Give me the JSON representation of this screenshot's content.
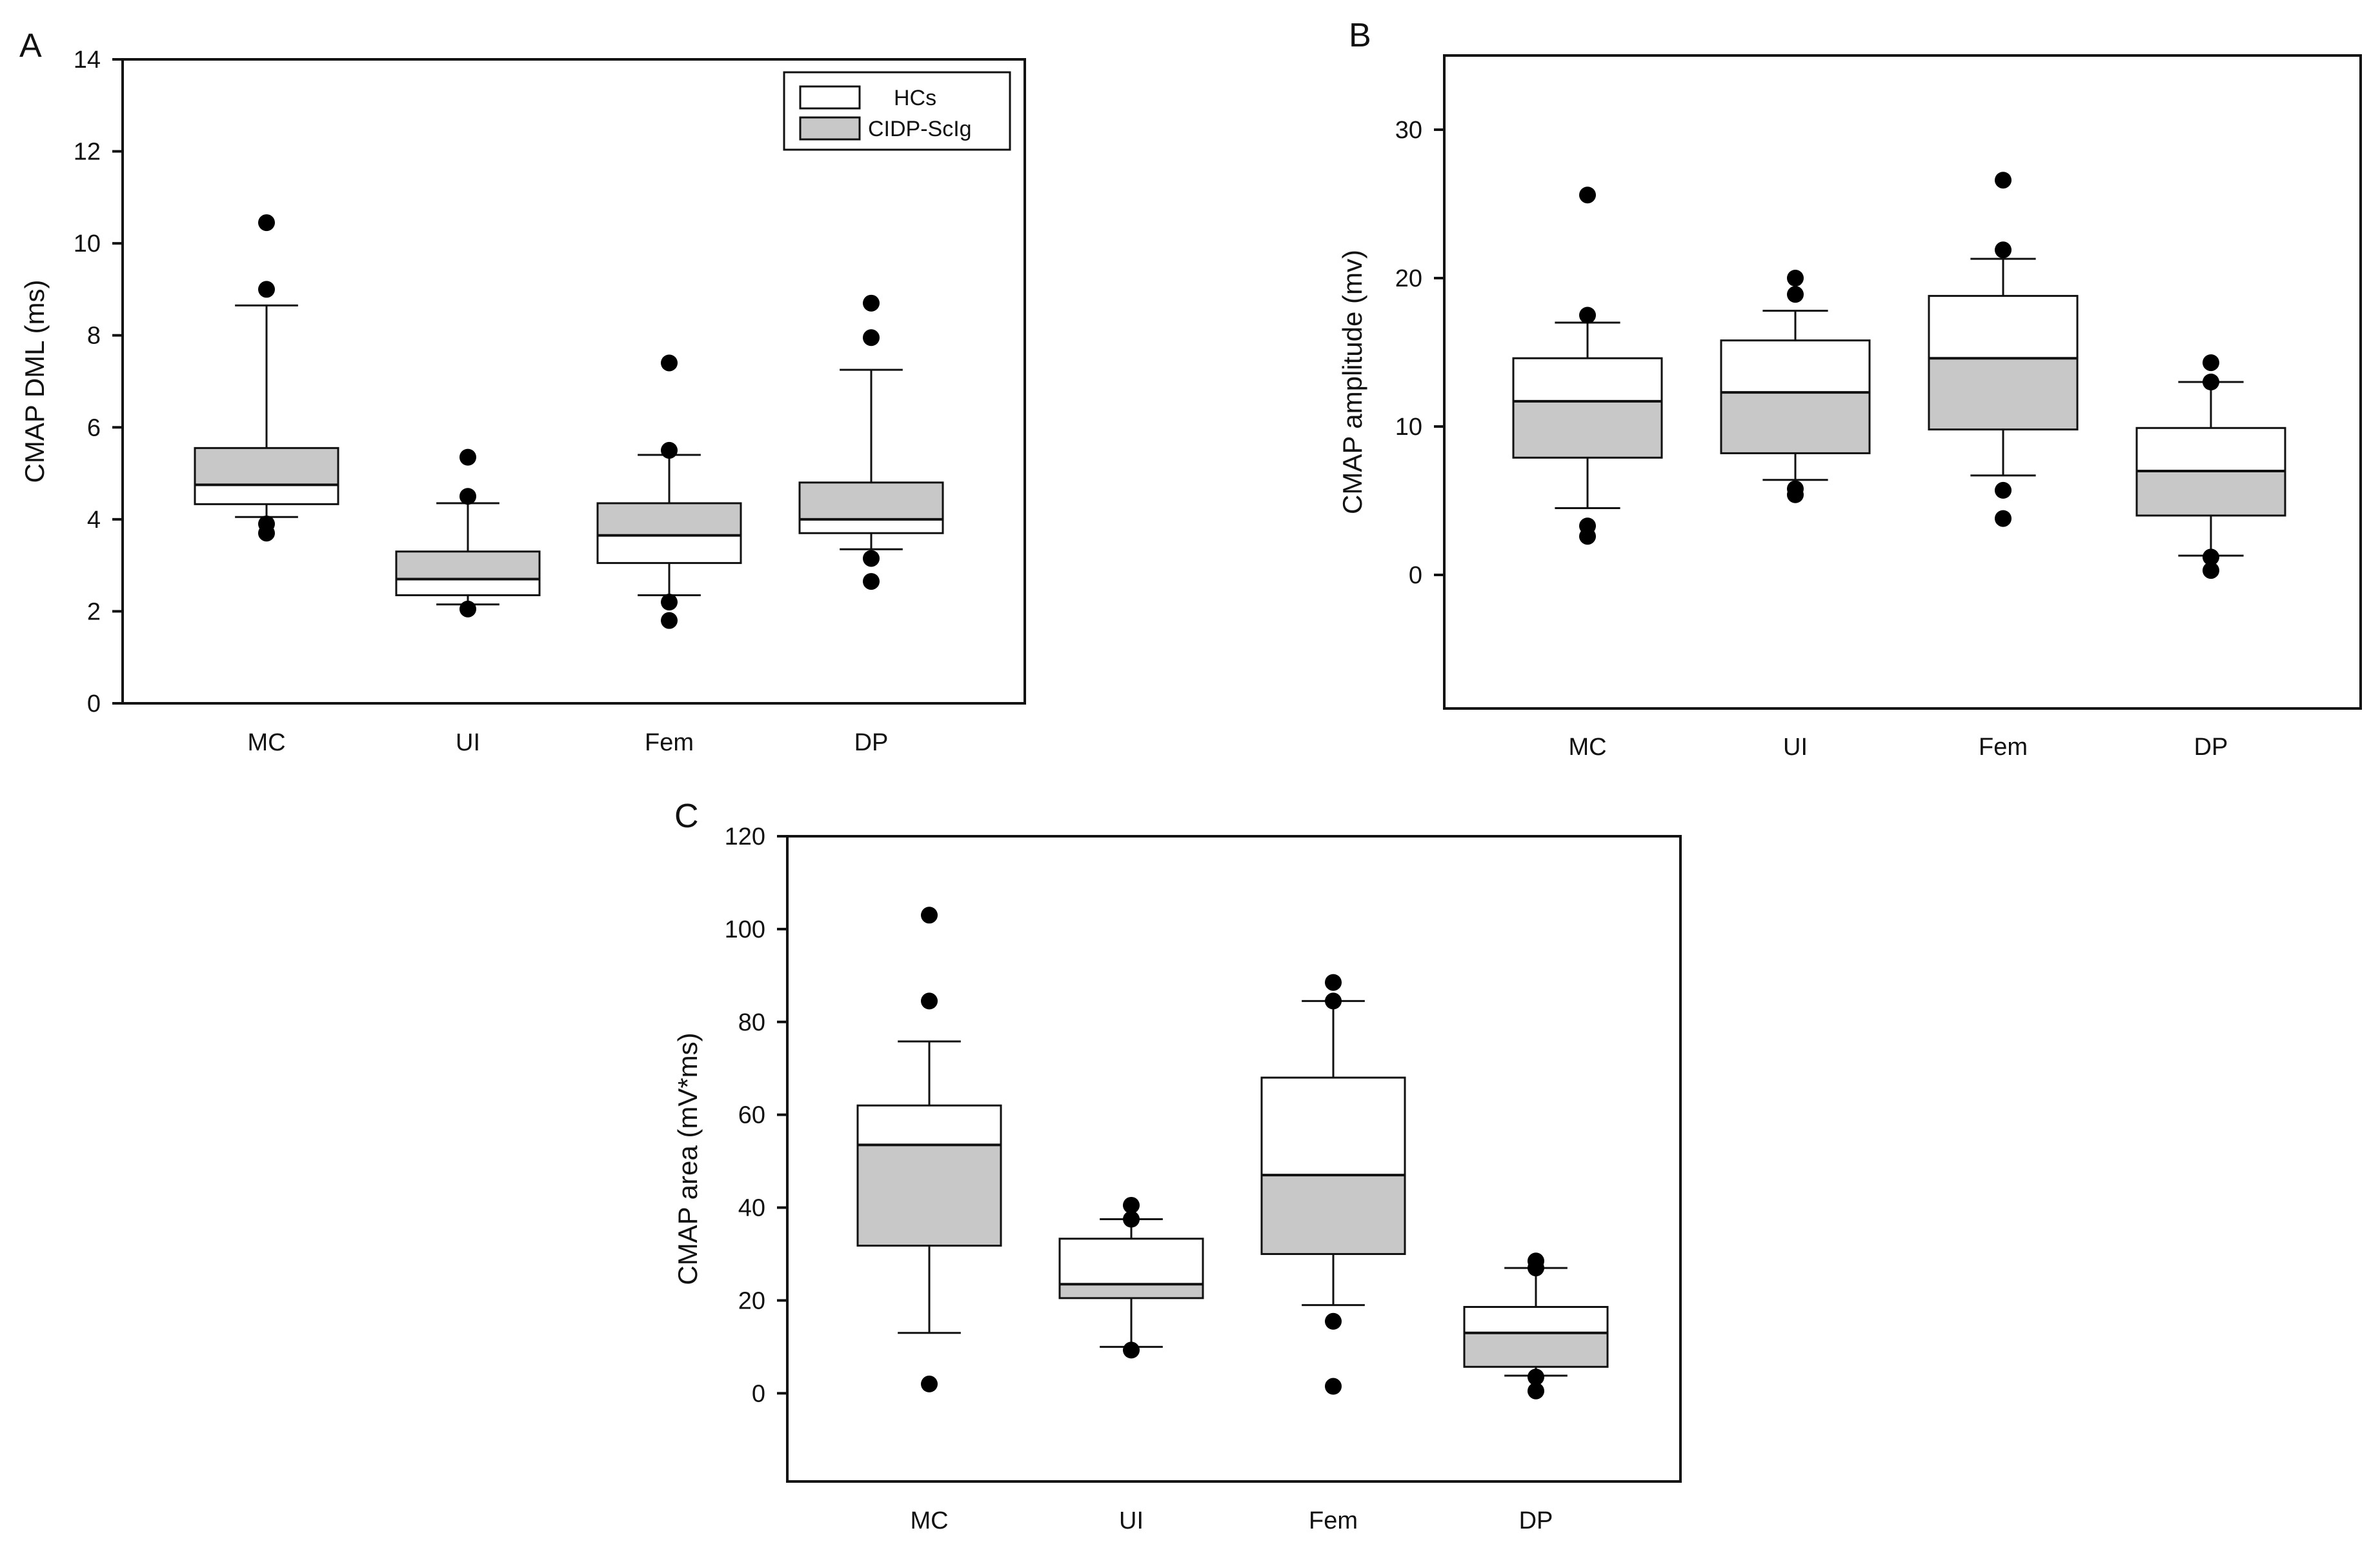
{
  "colors": {
    "healthy_controls_fill": "#ffffff",
    "cidp_fill": "#c8c8c8",
    "stroke": "#111111",
    "outlier": "#000000"
  },
  "legend": [
    {
      "label": "HCs",
      "color": "#ffffff"
    },
    {
      "label": "CIDP-ScIg",
      "color": "#c8c8c8"
    }
  ],
  "chart_data": [
    {
      "panel": "A",
      "type": "box",
      "ylabel": "CMAP DML (ms)",
      "xlabel": "",
      "ylim": [
        0,
        14
      ],
      "yticks": [
        0,
        2,
        4,
        6,
        8,
        10,
        12,
        14
      ],
      "legend_position": "top-right",
      "categories": [
        "MC",
        "UI",
        "Fem",
        "DP"
      ],
      "boxes": [
        {
          "category": "MC",
          "q1": 4.33,
          "median": 4.75,
          "q3": 5.55,
          "whisker_low": 4.05,
          "whisker_high": 8.65,
          "outliers": [
            10.45,
            9.0,
            3.9,
            3.7
          ],
          "lower_segment": "HCs",
          "upper_segment": "CIDP-ScIg"
        },
        {
          "category": "UI",
          "q1": 2.35,
          "median": 2.7,
          "q3": 3.3,
          "whisker_low": 2.15,
          "whisker_high": 4.35,
          "outliers": [
            5.35,
            4.5,
            2.05
          ],
          "lower_segment": "HCs",
          "upper_segment": "CIDP-ScIg"
        },
        {
          "category": "Fem",
          "q1": 3.05,
          "median": 3.65,
          "q3": 4.35,
          "whisker_low": 2.35,
          "whisker_high": 5.4,
          "outliers": [
            7.4,
            5.5,
            2.2,
            1.8
          ],
          "lower_segment": "HCs",
          "upper_segment": "CIDP-ScIg"
        },
        {
          "category": "DP",
          "q1": 3.7,
          "median": 4.0,
          "q3": 4.8,
          "whisker_low": 3.35,
          "whisker_high": 7.25,
          "outliers": [
            8.7,
            7.95,
            3.15,
            2.65
          ],
          "lower_segment": "HCs",
          "upper_segment": "CIDP-ScIg"
        }
      ]
    },
    {
      "panel": "B",
      "type": "box",
      "ylabel": "CMAP amplitude (mv)",
      "xlabel": "",
      "ylim": [
        -9,
        35
      ],
      "yticks": [
        0,
        10,
        20,
        30
      ],
      "categories": [
        "MC",
        "UI",
        "Fem",
        "DP"
      ],
      "boxes": [
        {
          "category": "MC",
          "q1": 7.9,
          "median": 11.7,
          "q3": 14.6,
          "whisker_low": 4.5,
          "whisker_high": 17.0,
          "outliers": [
            25.6,
            17.5,
            3.3,
            2.6
          ],
          "lower_segment": "CIDP-ScIg",
          "upper_segment": "HCs"
        },
        {
          "category": "UI",
          "q1": 8.2,
          "median": 12.3,
          "q3": 15.8,
          "whisker_low": 6.4,
          "whisker_high": 17.8,
          "outliers": [
            20.0,
            18.9,
            5.8,
            5.4
          ],
          "lower_segment": "CIDP-ScIg",
          "upper_segment": "HCs"
        },
        {
          "category": "Fem",
          "q1": 9.8,
          "median": 14.6,
          "q3": 18.8,
          "whisker_low": 6.7,
          "whisker_high": 21.3,
          "outliers": [
            26.6,
            21.9,
            5.7,
            3.8
          ],
          "lower_segment": "CIDP-ScIg",
          "upper_segment": "HCs"
        },
        {
          "category": "DP",
          "q1": 4.0,
          "median": 7.0,
          "q3": 9.9,
          "whisker_low": 1.3,
          "whisker_high": 13.0,
          "outliers": [
            14.3,
            13.0,
            1.2,
            0.3
          ],
          "lower_segment": "CIDP-ScIg",
          "upper_segment": "HCs"
        }
      ]
    },
    {
      "panel": "C",
      "type": "box",
      "ylabel": "CMAP area (mV*ms)",
      "xlabel": "",
      "ylim": [
        -19,
        120
      ],
      "yticks": [
        0,
        20,
        40,
        60,
        80,
        100,
        120
      ],
      "categories": [
        "MC",
        "UI",
        "Fem",
        "DP"
      ],
      "boxes": [
        {
          "category": "MC",
          "q1": 31.8,
          "median": 53.5,
          "q3": 62.0,
          "whisker_low": 13.0,
          "whisker_high": 75.8,
          "outliers": [
            103.0,
            84.5,
            2.0
          ],
          "lower_segment": "CIDP-ScIg",
          "upper_segment": "HCs"
        },
        {
          "category": "UI",
          "q1": 20.5,
          "median": 23.5,
          "q3": 33.3,
          "whisker_low": 10.0,
          "whisker_high": 37.5,
          "outliers": [
            40.5,
            37.5,
            9.3
          ],
          "lower_segment": "CIDP-ScIg",
          "upper_segment": "HCs"
        },
        {
          "category": "Fem",
          "q1": 30.0,
          "median": 47.0,
          "q3": 68.0,
          "whisker_low": 19.0,
          "whisker_high": 84.5,
          "outliers": [
            88.5,
            84.5,
            15.5,
            1.5
          ],
          "lower_segment": "CIDP-ScIg",
          "upper_segment": "HCs"
        },
        {
          "category": "DP",
          "q1": 5.7,
          "median": 13.0,
          "q3": 18.6,
          "whisker_low": 3.8,
          "whisker_high": 27.0,
          "outliers": [
            28.5,
            27.0,
            3.5,
            0.5
          ],
          "lower_segment": "CIDP-ScIg",
          "upper_segment": "HCs"
        }
      ]
    }
  ]
}
